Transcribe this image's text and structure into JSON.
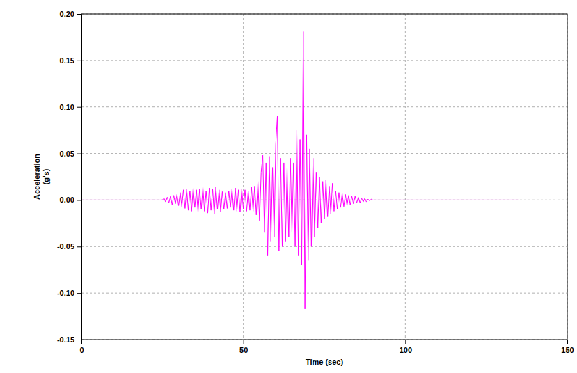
{
  "chart_data": {
    "type": "line",
    "xlabel": "Time (sec)",
    "ylabel": "Acceleration\n(g's)",
    "xlim": [
      0,
      150
    ],
    "ylim": [
      -0.15,
      0.2
    ],
    "xticks": [
      0,
      50,
      100,
      150
    ],
    "yticks": [
      {
        "value": -0.15,
        "label": "-0.15"
      },
      {
        "value": -0.1,
        "label": "-0.10"
      },
      {
        "value": -0.05,
        "label": "-0.05"
      },
      {
        "value": 0,
        "label": "0.00"
      },
      {
        "value": 0.05,
        "label": "0.05"
      },
      {
        "value": 0.1,
        "label": "0.10"
      },
      {
        "value": 0.15,
        "label": "0.15"
      },
      {
        "value": 0.2,
        "label": "0.20"
      }
    ],
    "grid": true,
    "x": [
      0,
      25,
      25.5,
      26,
      26.5,
      27,
      27.5,
      28,
      28.5,
      29,
      29.5,
      30,
      30.5,
      31,
      31.5,
      32,
      32.5,
      33,
      33.5,
      34,
      34.5,
      35,
      35.5,
      36,
      36.5,
      37,
      37.5,
      38,
      38.5,
      39,
      39.5,
      40,
      40.5,
      41,
      41.5,
      42,
      42.5,
      43,
      43.5,
      44,
      44.5,
      45,
      45.5,
      46,
      46.5,
      47,
      47.5,
      48,
      48.5,
      49,
      49.5,
      50,
      50.5,
      51,
      51.5,
      52,
      52.5,
      53,
      53.5,
      54,
      54.5,
      55,
      55.5,
      56,
      56.5,
      57,
      57.5,
      58,
      58.5,
      59,
      59.5,
      60,
      60.5,
      61,
      61.5,
      62,
      62.5,
      63,
      63.5,
      64,
      64.5,
      65,
      65.5,
      66,
      66.5,
      67,
      67.5,
      68,
      68.5,
      69,
      69.5,
      70,
      70.5,
      71,
      71.5,
      72,
      72.5,
      73,
      73.5,
      74,
      74.5,
      75,
      75.5,
      76,
      76.5,
      77,
      77.5,
      78,
      78.5,
      79,
      79.5,
      80,
      80.5,
      81,
      81.5,
      82,
      82.5,
      83,
      83.5,
      84,
      84.5,
      85,
      85.5,
      86,
      86.5,
      87,
      87.5,
      88,
      88.5,
      89,
      89.5,
      90,
      135
    ],
    "series": [
      {
        "color": "#ff00ff",
        "values": [
          0,
          0,
          0.002,
          -0.002,
          0.003,
          -0.003,
          0.004,
          -0.005,
          0.005,
          -0.004,
          0.006,
          -0.006,
          0.008,
          -0.007,
          0.011,
          -0.009,
          0.012,
          -0.011,
          0.01,
          -0.012,
          0.013,
          -0.008,
          0.011,
          -0.013,
          0.012,
          -0.01,
          0.014,
          -0.012,
          0.01,
          -0.014,
          0.013,
          -0.011,
          0.012,
          -0.015,
          0.014,
          -0.01,
          0.011,
          -0.013,
          0.009,
          -0.01,
          0.008,
          -0.009,
          0.01,
          -0.008,
          0.012,
          -0.011,
          0.013,
          -0.012,
          0.011,
          -0.013,
          0.012,
          -0.01,
          0.011,
          -0.012,
          0.01,
          -0.011,
          0.014,
          -0.012,
          0.015,
          -0.016,
          0.02,
          -0.022,
          0.03,
          0.048,
          -0.035,
          0.04,
          -0.06,
          0.047,
          -0.045,
          0.035,
          -0.04,
          0.06,
          0.09,
          -0.055,
          0.045,
          -0.05,
          0.04,
          -0.045,
          0.035,
          -0.04,
          0.045,
          -0.035,
          0.04,
          -0.05,
          0.075,
          -0.06,
          0.065,
          -0.07,
          0.181,
          -0.117,
          0.07,
          -0.065,
          0.055,
          -0.05,
          0.045,
          -0.04,
          0.03,
          -0.03,
          0.025,
          -0.025,
          0.02,
          -0.02,
          0.022,
          -0.018,
          0.015,
          -0.015,
          0.018,
          -0.012,
          0.01,
          -0.01,
          0.008,
          -0.008,
          0.007,
          -0.007,
          0.006,
          -0.006,
          0.005,
          -0.005,
          0.004,
          -0.004,
          0.004,
          -0.003,
          0.003,
          -0.003,
          0.002,
          -0.002,
          0.002,
          -0.002,
          0.001,
          -0.001,
          0.001,
          0,
          0
        ]
      }
    ]
  }
}
